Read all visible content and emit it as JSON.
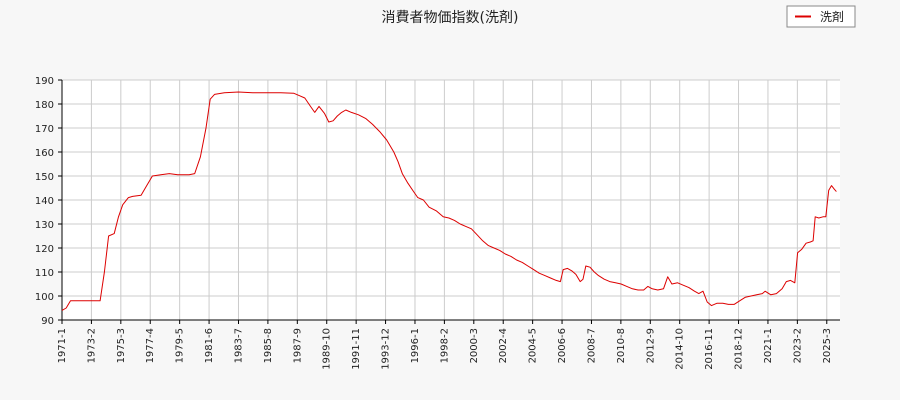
{
  "chart_data": {
    "type": "line",
    "title": "消費者物価指数(洗剤)",
    "xlabel": "",
    "ylabel": "",
    "ylim": [
      90,
      190
    ],
    "yticks": [
      90,
      100,
      110,
      120,
      130,
      140,
      150,
      160,
      170,
      180,
      190
    ],
    "xticks": [
      "1971-1",
      "1973-2",
      "1975-3",
      "1977-4",
      "1979-5",
      "1981-6",
      "1983-7",
      "1985-8",
      "1987-9",
      "1989-10",
      "1991-11",
      "1993-12",
      "1996-1",
      "1998-2",
      "2000-3",
      "2002-4",
      "2004-5",
      "2006-6",
      "2008-7",
      "2010-8",
      "2012-9",
      "2014-10",
      "2016-11",
      "2018-12",
      "2021-1",
      "2023-2",
      "2025-3"
    ],
    "grid": true,
    "legend": {
      "position": "top-right"
    },
    "series": [
      {
        "name": "洗剤",
        "color": "#dd0000",
        "points": [
          [
            1971.0,
            94
          ],
          [
            1971.3,
            95
          ],
          [
            1971.6,
            98
          ],
          [
            1972.0,
            98
          ],
          [
            1973.0,
            98
          ],
          [
            1973.7,
            98
          ],
          [
            1974.0,
            110
          ],
          [
            1974.3,
            125
          ],
          [
            1974.7,
            126
          ],
          [
            1975.0,
            133
          ],
          [
            1975.3,
            138
          ],
          [
            1975.7,
            141
          ],
          [
            1976.0,
            141.5
          ],
          [
            1976.6,
            142
          ],
          [
            1977.0,
            146
          ],
          [
            1977.4,
            150
          ],
          [
            1978.0,
            150.5
          ],
          [
            1978.6,
            151
          ],
          [
            1979.2,
            150.5
          ],
          [
            1980.0,
            150.5
          ],
          [
            1980.4,
            151
          ],
          [
            1980.8,
            158
          ],
          [
            1981.2,
            170
          ],
          [
            1981.5,
            182
          ],
          [
            1981.8,
            184
          ],
          [
            1982.5,
            184.7
          ],
          [
            1983.5,
            185
          ],
          [
            1984.5,
            184.7
          ],
          [
            1985.5,
            184.7
          ],
          [
            1986.5,
            184.7
          ],
          [
            1987.4,
            184.5
          ],
          [
            1987.8,
            183.5
          ],
          [
            1988.2,
            182.5
          ],
          [
            1988.6,
            179
          ],
          [
            1988.9,
            176.5
          ],
          [
            1989.2,
            179
          ],
          [
            1989.6,
            176
          ],
          [
            1989.9,
            172.5
          ],
          [
            1990.2,
            173
          ],
          [
            1990.5,
            175
          ],
          [
            1990.8,
            176.5
          ],
          [
            1991.1,
            177.5
          ],
          [
            1991.5,
            176.5
          ],
          [
            1992.0,
            175.5
          ],
          [
            1992.5,
            174
          ],
          [
            1993.0,
            171.5
          ],
          [
            1993.5,
            168.5
          ],
          [
            1994.0,
            165
          ],
          [
            1994.5,
            160
          ],
          [
            1994.8,
            156
          ],
          [
            1995.1,
            151
          ],
          [
            1995.5,
            147
          ],
          [
            1995.9,
            143.5
          ],
          [
            1996.2,
            141
          ],
          [
            1996.6,
            140
          ],
          [
            1997.0,
            137
          ],
          [
            1997.5,
            135.5
          ],
          [
            1998.0,
            133
          ],
          [
            1998.4,
            132.5
          ],
          [
            1998.8,
            131.5
          ],
          [
            1999.2,
            130
          ],
          [
            1999.6,
            129
          ],
          [
            2000.0,
            128
          ],
          [
            2000.4,
            125.5
          ],
          [
            2000.8,
            123
          ],
          [
            2001.2,
            121
          ],
          [
            2001.6,
            120
          ],
          [
            2002.0,
            119
          ],
          [
            2002.4,
            117.5
          ],
          [
            2002.8,
            116.5
          ],
          [
            2003.2,
            115
          ],
          [
            2003.6,
            114
          ],
          [
            2004.0,
            112.5
          ],
          [
            2004.4,
            111
          ],
          [
            2004.8,
            109.5
          ],
          [
            2005.2,
            108.5
          ],
          [
            2005.6,
            107.5
          ],
          [
            2006.0,
            106.5
          ],
          [
            2006.3,
            106
          ],
          [
            2006.5,
            111
          ],
          [
            2006.8,
            111.5
          ],
          [
            2007.1,
            110.5
          ],
          [
            2007.4,
            109
          ],
          [
            2007.7,
            106
          ],
          [
            2007.9,
            107
          ],
          [
            2008.1,
            112.5
          ],
          [
            2008.4,
            112
          ],
          [
            2008.7,
            110
          ],
          [
            2009.0,
            108.5
          ],
          [
            2009.4,
            107
          ],
          [
            2009.8,
            106
          ],
          [
            2010.2,
            105.5
          ],
          [
            2010.6,
            105
          ],
          [
            2011.0,
            104
          ],
          [
            2011.4,
            103
          ],
          [
            2011.8,
            102.5
          ],
          [
            2012.2,
            102.5
          ],
          [
            2012.5,
            104
          ],
          [
            2012.8,
            103
          ],
          [
            2013.2,
            102.5
          ],
          [
            2013.6,
            103
          ],
          [
            2013.9,
            108
          ],
          [
            2014.2,
            105
          ],
          [
            2014.6,
            105.5
          ],
          [
            2015.0,
            104.5
          ],
          [
            2015.4,
            103.5
          ],
          [
            2015.8,
            102
          ],
          [
            2016.1,
            101
          ],
          [
            2016.4,
            102
          ],
          [
            2016.7,
            97.5
          ],
          [
            2017.0,
            96
          ],
          [
            2017.4,
            97
          ],
          [
            2017.8,
            97
          ],
          [
            2018.2,
            96.5
          ],
          [
            2018.6,
            96.5
          ],
          [
            2019.0,
            98
          ],
          [
            2019.4,
            99.5
          ],
          [
            2019.8,
            100
          ],
          [
            2020.2,
            100.5
          ],
          [
            2020.6,
            101
          ],
          [
            2020.8,
            102
          ],
          [
            2021.2,
            100.5
          ],
          [
            2021.6,
            101
          ],
          [
            2022.0,
            103
          ],
          [
            2022.3,
            106
          ],
          [
            2022.6,
            106.5
          ],
          [
            2022.9,
            105.5
          ],
          [
            2023.1,
            118
          ],
          [
            2023.4,
            119.5
          ],
          [
            2023.7,
            122
          ],
          [
            2024.0,
            122.5
          ],
          [
            2024.2,
            123
          ],
          [
            2024.35,
            133
          ],
          [
            2024.6,
            132.5
          ],
          [
            2024.9,
            133
          ],
          [
            2025.1,
            133
          ],
          [
            2025.3,
            144
          ],
          [
            2025.5,
            146
          ],
          [
            2025.7,
            144.5
          ],
          [
            2025.85,
            143.5
          ]
        ]
      }
    ]
  }
}
